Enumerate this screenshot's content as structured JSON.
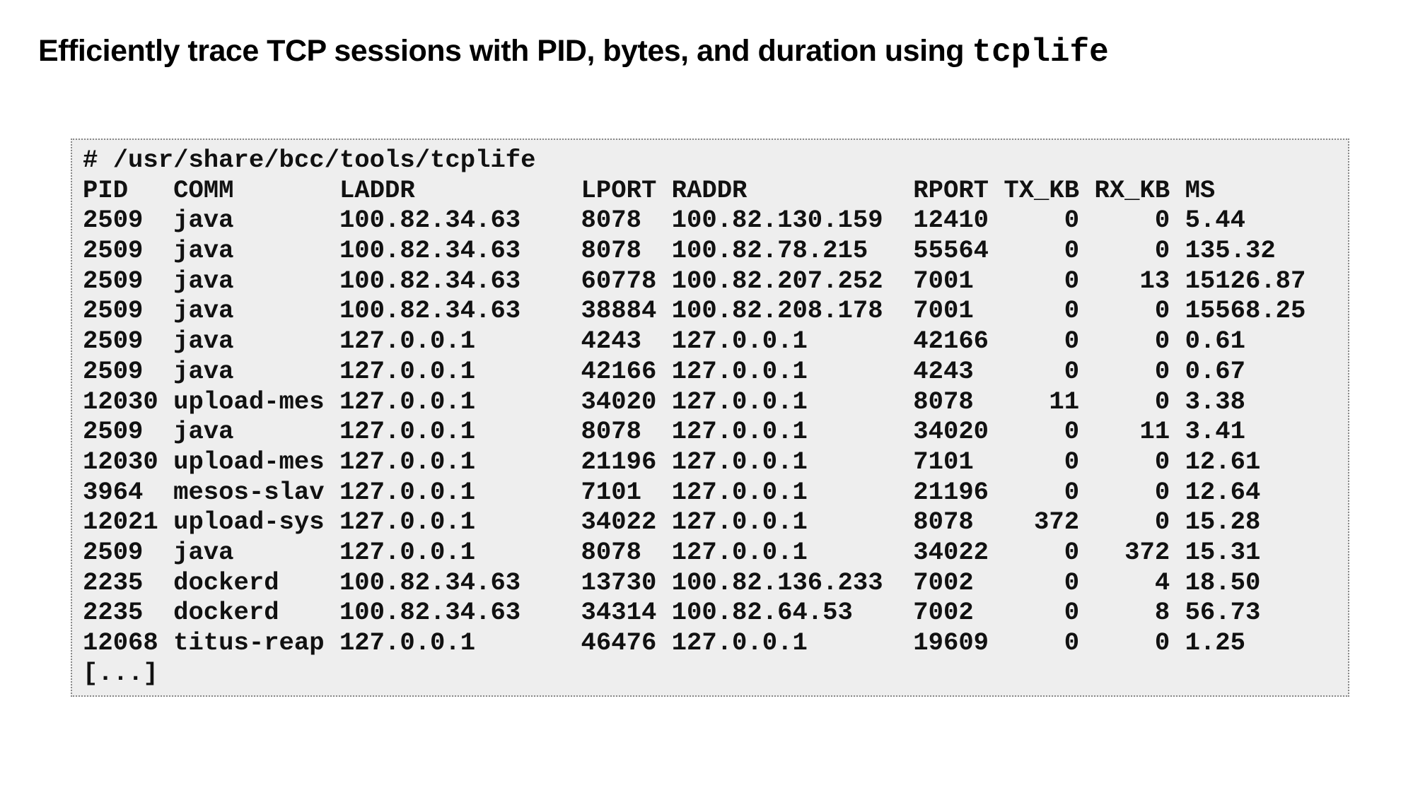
{
  "title": {
    "text": "Efficiently trace TCP sessions with PID, bytes, and duration using",
    "code": "tcplife"
  },
  "command": "# /usr/share/bcc/tools/tcplife",
  "table": {
    "header": [
      "PID",
      "COMM",
      "LADDR",
      "LPORT",
      "RADDR",
      "RPORT",
      "TX_KB",
      "RX_KB",
      "MS"
    ],
    "rows": [
      [
        "2509",
        "java",
        "100.82.34.63",
        "8078",
        "100.82.130.159",
        "12410",
        "0",
        "0",
        "5.44"
      ],
      [
        "2509",
        "java",
        "100.82.34.63",
        "8078",
        "100.82.78.215",
        "55564",
        "0",
        "0",
        "135.32"
      ],
      [
        "2509",
        "java",
        "100.82.34.63",
        "60778",
        "100.82.207.252",
        "7001",
        "0",
        "13",
        "15126.87"
      ],
      [
        "2509",
        "java",
        "100.82.34.63",
        "38884",
        "100.82.208.178",
        "7001",
        "0",
        "0",
        "15568.25"
      ],
      [
        "2509",
        "java",
        "127.0.0.1",
        "4243",
        "127.0.0.1",
        "42166",
        "0",
        "0",
        "0.61"
      ],
      [
        "2509",
        "java",
        "127.0.0.1",
        "42166",
        "127.0.0.1",
        "4243",
        "0",
        "0",
        "0.67"
      ],
      [
        "12030",
        "upload-mes",
        "127.0.0.1",
        "34020",
        "127.0.0.1",
        "8078",
        "11",
        "0",
        "3.38"
      ],
      [
        "2509",
        "java",
        "127.0.0.1",
        "8078",
        "127.0.0.1",
        "34020",
        "0",
        "11",
        "3.41"
      ],
      [
        "12030",
        "upload-mes",
        "127.0.0.1",
        "21196",
        "127.0.0.1",
        "7101",
        "0",
        "0",
        "12.61"
      ],
      [
        "3964",
        "mesos-slav",
        "127.0.0.1",
        "7101",
        "127.0.0.1",
        "21196",
        "0",
        "0",
        "12.64"
      ],
      [
        "12021",
        "upload-sys",
        "127.0.0.1",
        "34022",
        "127.0.0.1",
        "8078",
        "372",
        "0",
        "15.28"
      ],
      [
        "2509",
        "java",
        "127.0.0.1",
        "8078",
        "127.0.0.1",
        "34022",
        "0",
        "372",
        "15.31"
      ],
      [
        "2235",
        "dockerd",
        "100.82.34.63",
        "13730",
        "100.82.136.233",
        "7002",
        "0",
        "4",
        "18.50"
      ],
      [
        "2235",
        "dockerd",
        "100.82.34.63",
        "34314",
        "100.82.64.53",
        "7002",
        "0",
        "8",
        "56.73"
      ],
      [
        "12068",
        "titus-reap",
        "127.0.0.1",
        "46476",
        "127.0.0.1",
        "19609",
        "0",
        "0",
        "1.25"
      ]
    ]
  },
  "ellipsis": "[...]"
}
